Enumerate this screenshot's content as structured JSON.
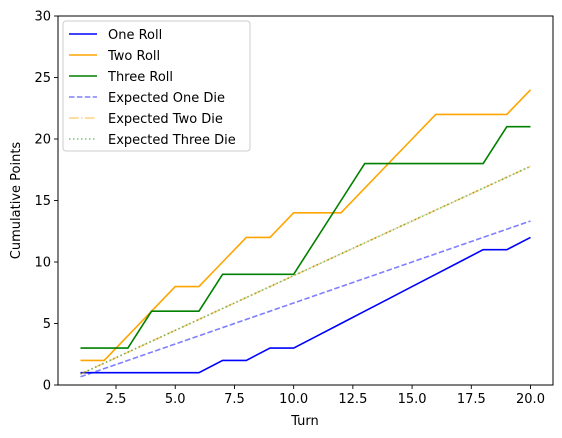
{
  "chart_data": {
    "type": "line",
    "title": "",
    "xlabel": "Turn",
    "ylabel": "Cumulative Points",
    "xlim": [
      0.05,
      20.95
    ],
    "ylim": [
      0,
      30
    ],
    "x_ticks": [
      2.5,
      5.0,
      7.5,
      10.0,
      12.5,
      15.0,
      17.5,
      20.0
    ],
    "x_tick_labels": [
      "2.5",
      "5.0",
      "7.5",
      "10.0",
      "12.5",
      "15.0",
      "17.5",
      "20.0"
    ],
    "y_ticks": [
      0,
      5,
      10,
      15,
      20,
      25,
      30
    ],
    "y_tick_labels": [
      "0",
      "5",
      "10",
      "15",
      "20",
      "25",
      "30"
    ],
    "grid": false,
    "legend_position": "top-left",
    "x": [
      1,
      2,
      3,
      4,
      5,
      6,
      7,
      8,
      9,
      10,
      11,
      12,
      13,
      14,
      15,
      16,
      17,
      18,
      19,
      20
    ],
    "series": [
      {
        "name": "One Roll",
        "color": "#0000ff",
        "style": "solid",
        "opacity": 1,
        "values": [
          1,
          1,
          1,
          1,
          1,
          1,
          2,
          2,
          3,
          3,
          4,
          5,
          6,
          7,
          8,
          9,
          10,
          11,
          11,
          12
        ]
      },
      {
        "name": "Two Roll",
        "color": "#ffa500",
        "style": "solid",
        "opacity": 1,
        "values": [
          2,
          2,
          4,
          6,
          8,
          8,
          10,
          12,
          12,
          14,
          14,
          14,
          16,
          18,
          20,
          22,
          22,
          22,
          22,
          24
        ]
      },
      {
        "name": "Three Roll",
        "color": "#008000",
        "style": "solid",
        "opacity": 1,
        "values": [
          3,
          3,
          3,
          6,
          6,
          6,
          9,
          9,
          9,
          9,
          12,
          15,
          18,
          18,
          18,
          18,
          18,
          18,
          21,
          21
        ]
      },
      {
        "name": "Expected One Die",
        "color": "#0000ff",
        "style": "dashed",
        "opacity": 0.5,
        "x_range": [
          1,
          20
        ],
        "values_range": [
          0.667,
          13.333
        ]
      },
      {
        "name": "Expected Two Die",
        "color": "#ffa500",
        "style": "dashdot",
        "opacity": 0.5,
        "x_range": [
          1,
          20
        ],
        "values_range": [
          0.889,
          17.778
        ]
      },
      {
        "name": "Expected Three Die",
        "color": "#008000",
        "style": "dotted",
        "opacity": 0.5,
        "x_range": [
          1,
          20
        ],
        "values_range": [
          0.889,
          17.778
        ]
      }
    ]
  }
}
